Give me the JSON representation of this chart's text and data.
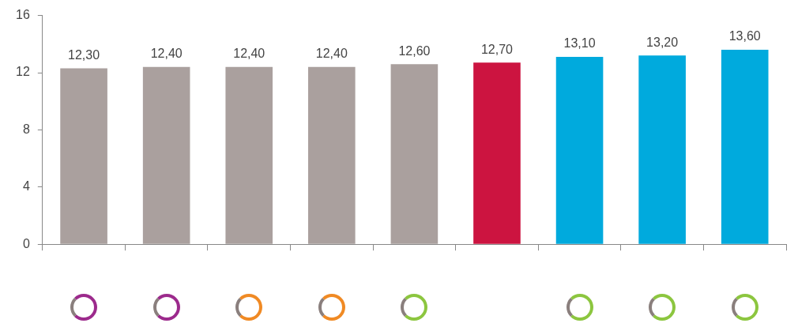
{
  "chart_data": {
    "type": "bar",
    "categories": [
      null,
      null,
      null,
      null,
      null,
      null,
      null,
      null,
      null
    ],
    "values": [
      12.3,
      12.4,
      12.4,
      12.4,
      12.6,
      12.7,
      13.1,
      13.2,
      13.6
    ],
    "colors": [
      "#aaa09e",
      "#aaa09e",
      "#aaa09e",
      "#aaa09e",
      "#aaa09e",
      "#cc1440",
      "#00aadd",
      "#00aadd",
      "#00aadd"
    ],
    "value_labels": [
      "12,30",
      "12,40",
      "12,40",
      "12,40",
      "12,60",
      "12,70",
      "13,10",
      "13,20",
      "13,60"
    ],
    "ylim": [
      0,
      16
    ],
    "yticks": [
      0,
      4,
      8,
      12,
      16
    ],
    "grid": false,
    "legend": false
  }
}
